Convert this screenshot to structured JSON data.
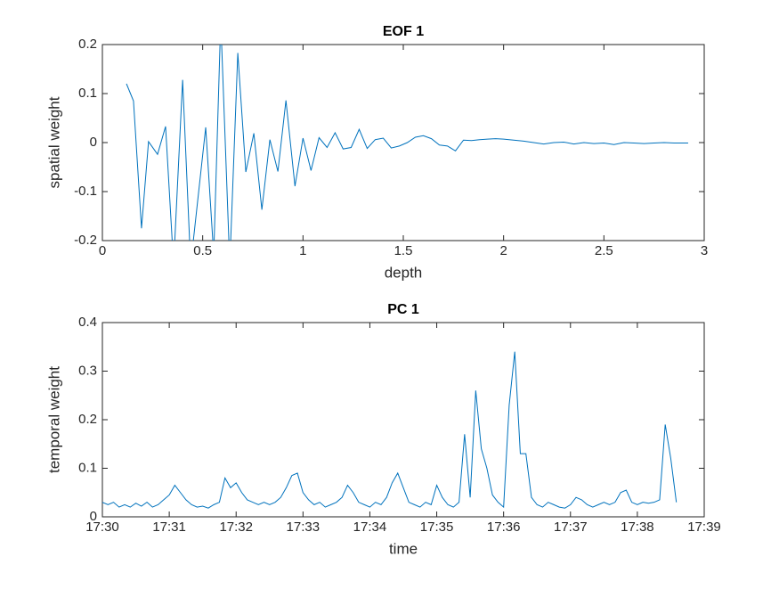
{
  "chart_data": [
    {
      "type": "line",
      "title": "EOF 1",
      "xlabel": "depth",
      "ylabel": "spatial weight",
      "color": "#0072bd",
      "x": [
        0.12,
        0.155,
        0.195,
        0.23,
        0.275,
        0.315,
        0.355,
        0.4,
        0.44,
        0.515,
        0.555,
        0.59,
        0.635,
        0.675,
        0.715,
        0.755,
        0.795,
        0.835,
        0.875,
        0.915,
        0.96,
        1.0,
        1.04,
        1.08,
        1.12,
        1.16,
        1.2,
        1.24,
        1.28,
        1.32,
        1.36,
        1.4,
        1.44,
        1.48,
        1.52,
        1.56,
        1.6,
        1.64,
        1.68,
        1.72,
        1.76,
        1.8,
        1.84,
        1.88,
        1.92,
        1.96,
        2.0,
        2.05,
        2.1,
        2.15,
        2.2,
        2.25,
        2.3,
        2.35,
        2.4,
        2.45,
        2.5,
        2.55,
        2.6,
        2.65,
        2.7,
        2.75,
        2.8,
        2.85,
        2.92
      ],
      "values": [
        0.12,
        0.085,
        -0.175,
        0.002,
        -0.024,
        0.033,
        -0.25,
        0.128,
        -0.25,
        0.031,
        -0.23,
        0.25,
        -0.25,
        0.183,
        -0.06,
        0.019,
        -0.137,
        0.006,
        -0.059,
        0.086,
        -0.089,
        0.009,
        -0.057,
        0.01,
        -0.01,
        0.02,
        -0.013,
        -0.01,
        0.027,
        -0.012,
        0.006,
        0.009,
        -0.011,
        -0.007,
        0,
        0.011,
        0.014,
        0.008,
        -0.005,
        -0.007,
        -0.017,
        0.005,
        0.004,
        0.006,
        0.007,
        0.008,
        0.007,
        0.005,
        0.003,
        0,
        -0.003,
        0,
        0.001,
        -0.003,
        0,
        -0.002,
        -0.001,
        -0.004,
        0,
        -0.001,
        -0.002,
        -0.001,
        0,
        -0.001,
        -0.001
      ],
      "xlim": [
        0,
        3
      ],
      "xticks": [
        0,
        0.5,
        1,
        1.5,
        2,
        2.5,
        3
      ],
      "ylim": [
        -0.2,
        0.2
      ],
      "yticks": [
        -0.2,
        -0.1,
        0,
        0.1,
        0.2
      ]
    },
    {
      "type": "line",
      "title": "PC 1",
      "xlabel": "time",
      "ylabel": "temporal weight",
      "color": "#0072bd",
      "x": [
        "17:30:00",
        "17:30:05",
        "17:30:10",
        "17:30:15",
        "17:30:20",
        "17:30:25",
        "17:30:30",
        "17:30:35",
        "17:30:40",
        "17:30:45",
        "17:30:50",
        "17:30:55",
        "17:31:00",
        "17:31:05",
        "17:31:10",
        "17:31:15",
        "17:31:20",
        "17:31:25",
        "17:31:30",
        "17:31:35",
        "17:31:40",
        "17:31:45",
        "17:31:50",
        "17:31:55",
        "17:32:00",
        "17:32:05",
        "17:32:10",
        "17:32:15",
        "17:32:20",
        "17:32:25",
        "17:32:30",
        "17:32:35",
        "17:32:40",
        "17:32:45",
        "17:32:50",
        "17:32:55",
        "17:33:00",
        "17:33:05",
        "17:33:10",
        "17:33:15",
        "17:33:20",
        "17:33:25",
        "17:33:30",
        "17:33:35",
        "17:33:40",
        "17:33:45",
        "17:33:50",
        "17:33:55",
        "17:34:00",
        "17:34:05",
        "17:34:10",
        "17:34:15",
        "17:34:20",
        "17:34:25",
        "17:34:30",
        "17:34:35",
        "17:34:40",
        "17:34:45",
        "17:34:50",
        "17:34:55",
        "17:35:00",
        "17:35:05",
        "17:35:10",
        "17:35:15",
        "17:35:20",
        "17:35:25",
        "17:35:30",
        "17:35:35",
        "17:35:40",
        "17:35:45",
        "17:35:50",
        "17:35:55",
        "17:36:00",
        "17:36:05",
        "17:36:10",
        "17:36:15",
        "17:36:20",
        "17:36:25",
        "17:36:30",
        "17:36:35",
        "17:36:40",
        "17:36:45",
        "17:36:50",
        "17:36:55",
        "17:37:00",
        "17:37:05",
        "17:37:10",
        "17:37:15",
        "17:37:20",
        "17:37:25",
        "17:37:30",
        "17:37:35",
        "17:37:40",
        "17:37:45",
        "17:37:50",
        "17:37:55",
        "17:38:00",
        "17:38:05",
        "17:38:10",
        "17:38:15",
        "17:38:20",
        "17:38:25",
        "17:38:30",
        "17:38:35"
      ],
      "values": [
        0.03,
        0.025,
        0.03,
        0.02,
        0.025,
        0.02,
        0.028,
        0.022,
        0.03,
        0.02,
        0.025,
        0.035,
        0.045,
        0.065,
        0.05,
        0.035,
        0.025,
        0.02,
        0.022,
        0.018,
        0.025,
        0.03,
        0.08,
        0.06,
        0.07,
        0.05,
        0.035,
        0.03,
        0.025,
        0.03,
        0.025,
        0.03,
        0.04,
        0.06,
        0.085,
        0.09,
        0.05,
        0.035,
        0.025,
        0.03,
        0.02,
        0.025,
        0.03,
        0.04,
        0.065,
        0.05,
        0.03,
        0.025,
        0.02,
        0.03,
        0.025,
        0.04,
        0.07,
        0.09,
        0.06,
        0.03,
        0.025,
        0.02,
        0.03,
        0.025,
        0.065,
        0.04,
        0.025,
        0.02,
        0.03,
        0.17,
        0.04,
        0.26,
        0.14,
        0.1,
        0.045,
        0.03,
        0.02,
        0.23,
        0.34,
        0.13,
        0.13,
        0.04,
        0.025,
        0.02,
        0.03,
        0.025,
        0.02,
        0.018,
        0.025,
        0.04,
        0.035,
        0.025,
        0.02,
        0.025,
        0.03,
        0.025,
        0.03,
        0.05,
        0.055,
        0.03,
        0.025,
        0.03,
        0.028,
        0.03,
        0.035,
        0.19,
        0.12,
        0.03
      ],
      "xlim": [
        "17:30",
        "17:39"
      ],
      "xticks": [
        "17:30",
        "17:31",
        "17:32",
        "17:33",
        "17:34",
        "17:35",
        "17:36",
        "17:37",
        "17:38",
        "17:39"
      ],
      "ylim": [
        0,
        0.4
      ],
      "yticks": [
        0,
        0.1,
        0.2,
        0.3,
        0.4
      ]
    }
  ]
}
